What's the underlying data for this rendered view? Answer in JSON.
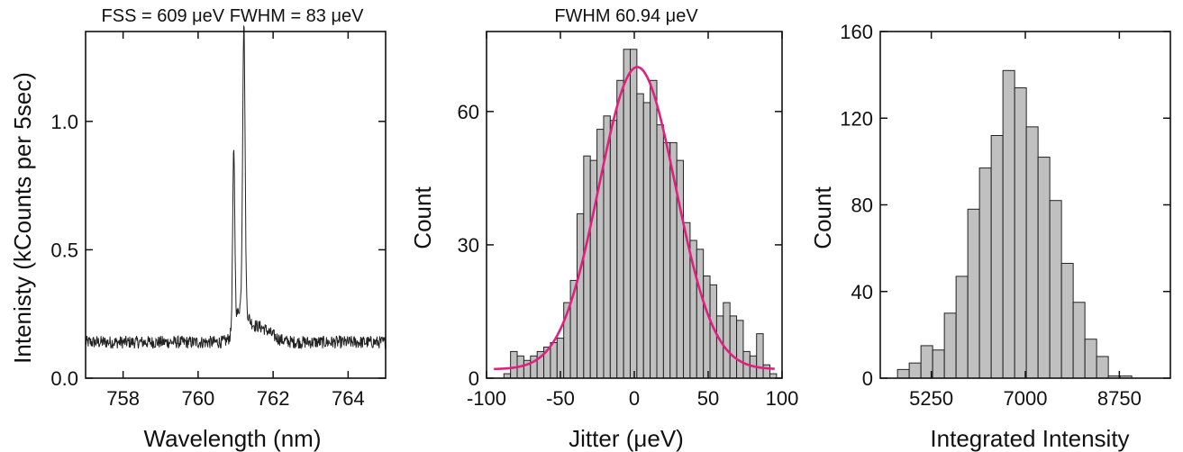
{
  "chart_data": [
    {
      "type": "line",
      "title": "FSS = 609 μeV FWHM = 83 μeV",
      "xlabel": "Wavelength (nm)",
      "ylabel": "Intenisty (kCounts per 5sec)",
      "xlim": [
        757,
        765
      ],
      "ylim": [
        0,
        1.35
      ],
      "xticks": [
        758,
        760,
        762,
        764
      ],
      "yticks": [
        0.0,
        0.5,
        1.0
      ],
      "ytick_labels": [
        "0.0",
        "0.5",
        "1.0"
      ],
      "grid": false,
      "baseline": 0.14,
      "noise_amplitude": 0.025,
      "peaks": [
        {
          "center": 760.95,
          "height": 0.82,
          "width": 0.04
        },
        {
          "center": 761.22,
          "height": 1.25,
          "width": 0.045
        }
      ],
      "line_color": "#222222"
    },
    {
      "type": "bar",
      "title": "FWHM 60.94 μeV",
      "xlabel": "Jitter (μeV)",
      "ylabel": "Count",
      "xlim": [
        -100,
        100
      ],
      "ylim": [
        0,
        78
      ],
      "xticks": [
        -100,
        -50,
        0,
        50,
        100
      ],
      "yticks": [
        0,
        30,
        60
      ],
      "bin_width": 4.5,
      "bin_centers": [
        -86,
        -81.5,
        -77,
        -72.5,
        -68,
        -63.5,
        -59,
        -54.5,
        -50,
        -45.5,
        -41,
        -36.5,
        -32,
        -27.5,
        -23,
        -18.5,
        -14,
        -9.5,
        -5,
        -0.5,
        4,
        8.5,
        13,
        17.5,
        22,
        26.5,
        31,
        35.5,
        40,
        44.5,
        49,
        53.5,
        58,
        62.5,
        67,
        71.5,
        76,
        80.5,
        85,
        89.5,
        94
      ],
      "values": [
        1,
        6,
        5,
        4,
        5,
        6,
        7,
        8,
        9,
        17,
        22,
        37,
        50,
        49,
        56,
        59,
        58,
        67,
        74,
        74,
        64,
        62,
        67,
        57,
        53,
        53,
        49,
        35,
        31,
        29,
        23,
        21,
        14,
        17,
        14,
        13,
        6,
        5,
        10,
        3,
        1
      ],
      "bar_color": "#c0c0c0",
      "fit": {
        "type": "gaussian",
        "amplitude": 68,
        "center": 2,
        "fwhm": 60.94,
        "offset": 2,
        "color": "#e0207f"
      }
    },
    {
      "type": "bar",
      "title": "",
      "xlabel": "Integrated Intensity",
      "ylabel": "Count",
      "xlim": [
        4300,
        9700
      ],
      "ylim": [
        0,
        160
      ],
      "xticks": [
        5250,
        7000,
        8750
      ],
      "yticks": [
        0,
        40,
        80,
        120,
        160
      ],
      "bin_width": 218,
      "bin_centers": [
        4730,
        4948,
        5166,
        5384,
        5602,
        5820,
        6038,
        6256,
        6474,
        6692,
        6910,
        7128,
        7346,
        7564,
        7782,
        8000,
        8218,
        8436,
        8654,
        8872,
        9090,
        9308
      ],
      "values": [
        4,
        7,
        15,
        13,
        30,
        47,
        78,
        97,
        112,
        142,
        134,
        116,
        102,
        82,
        53,
        35,
        18,
        10,
        1,
        1,
        0,
        0
      ],
      "bar_color": "#c0c0c0"
    }
  ]
}
